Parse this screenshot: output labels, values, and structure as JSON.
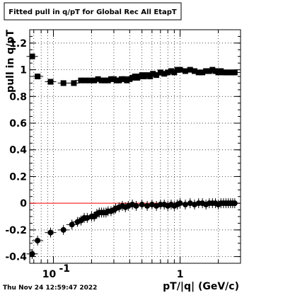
{
  "chart_data": {
    "type": "scatter",
    "title": "Fitted pull in q/pT for Global Rec All EtapT",
    "xlabel": "pT/|q| (GeV/c)",
    "ylabel": "pull in q/pT",
    "x_scale": "log",
    "xlim": [
      0.065,
      3.0
    ],
    "ylim": [
      -0.45,
      1.3
    ],
    "grid": true,
    "x_tick_labels": [
      "10^-1",
      "1"
    ],
    "y_tick_labels": [
      "-0.4",
      "-0.2",
      "0",
      "0.2",
      "0.4",
      "0.6",
      "0.8",
      "1",
      "1.2"
    ],
    "y_ticks": [
      -0.4,
      -0.2,
      0,
      0.2,
      0.4,
      0.6,
      0.8,
      1,
      1.2
    ],
    "reference_line": {
      "y": 0,
      "color": "#ff0000"
    },
    "series": [
      {
        "x": [
          0.068,
          0.075,
          0.095,
          0.12,
          0.145,
          0.165,
          0.18,
          0.195,
          0.21,
          0.225,
          0.24,
          0.255,
          0.27,
          0.285,
          0.3,
          0.315,
          0.33,
          0.345,
          0.36,
          0.38,
          0.4,
          0.42,
          0.44,
          0.46,
          0.48,
          0.5,
          0.52,
          0.55,
          0.58,
          0.61,
          0.65,
          0.7,
          0.75,
          0.8,
          0.85,
          0.9,
          0.95,
          1.0,
          1.1,
          1.2,
          1.3,
          1.4,
          1.5,
          1.6,
          1.7,
          1.8,
          1.9,
          2.0,
          2.1,
          2.2,
          2.3,
          2.4,
          2.5,
          2.6,
          2.7
        ],
        "values": [
          1.1,
          0.95,
          0.91,
          0.9,
          0.9,
          0.92,
          0.92,
          0.92,
          0.92,
          0.93,
          0.92,
          0.92,
          0.92,
          0.93,
          0.93,
          0.92,
          0.92,
          0.93,
          0.93,
          0.92,
          0.93,
          0.94,
          0.95,
          0.94,
          0.95,
          0.96,
          0.95,
          0.96,
          0.95,
          0.97,
          0.96,
          0.98,
          0.97,
          0.98,
          0.99,
          0.98,
          1.0,
          1.0,
          0.99,
          1.0,
          0.99,
          0.98,
          0.98,
          0.99,
          0.99,
          1.0,
          0.99,
          0.98,
          0.99,
          0.98,
          0.98,
          0.98,
          0.98,
          0.98,
          0.98
        ]
      },
      {
        "x": [
          0.068,
          0.075,
          0.095,
          0.12,
          0.14,
          0.155,
          0.165,
          0.175,
          0.185,
          0.2,
          0.21,
          0.22,
          0.23,
          0.24,
          0.25,
          0.26,
          0.27,
          0.285,
          0.3,
          0.31,
          0.33,
          0.35,
          0.37,
          0.39,
          0.42,
          0.45,
          0.5,
          0.55,
          0.6,
          0.65,
          0.7,
          0.75,
          0.8,
          0.85,
          0.9,
          0.95,
          1.0,
          1.1,
          1.2,
          1.3,
          1.4,
          1.5,
          1.6,
          1.7,
          1.8,
          1.9,
          2.0,
          2.1,
          2.2,
          2.3,
          2.4,
          2.5,
          2.6,
          2.7
        ],
        "values": [
          -0.38,
          -0.28,
          -0.22,
          -0.2,
          -0.16,
          -0.14,
          -0.13,
          -0.11,
          -0.11,
          -0.1,
          -0.1,
          -0.08,
          -0.07,
          -0.07,
          -0.07,
          -0.07,
          -0.06,
          -0.06,
          -0.05,
          -0.04,
          -0.03,
          -0.02,
          -0.03,
          -0.02,
          -0.01,
          -0.02,
          -0.01,
          -0.02,
          -0.01,
          -0.02,
          -0.01,
          -0.01,
          -0.02,
          -0.01,
          -0.02,
          -0.01,
          0.0,
          -0.01,
          0.0,
          -0.01,
          0.0,
          0.0,
          -0.01,
          0.0,
          0.0,
          0.0,
          -0.01,
          0.0,
          0.0,
          0.0,
          0.0,
          0.0,
          0.0,
          0.0
        ]
      }
    ]
  },
  "footer": {
    "timestamp": "Thu Nov 24 12:59:47 2022"
  }
}
